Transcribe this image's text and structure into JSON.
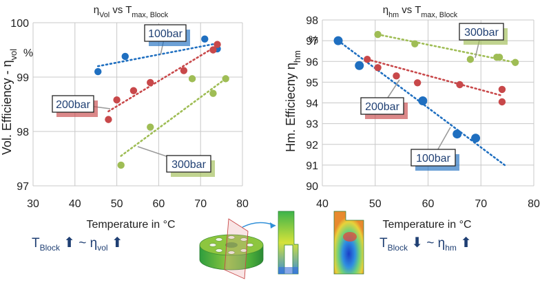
{
  "colors": {
    "blue": "#1f6fc0",
    "red": "#c8484a",
    "green": "#9fbd55",
    "grid": "#c8c8c8",
    "text": "#1e1e1e",
    "navy": "#1f3f73"
  },
  "chart_data": [
    {
      "type": "scatter",
      "title": {
        "main": "η",
        "main_sub": "Vol",
        "mid": " vs T",
        "mid_sub": "max, Block"
      },
      "ylabel": {
        "main": "Vol. Efficiency - η",
        "sub": "vol"
      },
      "y_unit": "%",
      "xlabel": "Temperature in °C",
      "xlim": [
        30,
        80
      ],
      "ylim": [
        97,
        100
      ],
      "xticks": [
        "30",
        "40",
        "50",
        "60",
        "70",
        "80"
      ],
      "yticks": [
        "97",
        "98",
        "99",
        "100"
      ],
      "grid": true,
      "series": [
        {
          "name": "100bar",
          "color": "blue",
          "points": [
            [
              45.5,
              99.1
            ],
            [
              52,
              99.38
            ],
            [
              71,
              99.7
            ],
            [
              74,
              99.52
            ]
          ],
          "trend": [
            [
              45.5,
              99.2
            ],
            [
              74,
              99.62
            ]
          ]
        },
        {
          "name": "200bar",
          "color": "red",
          "points": [
            [
              48,
              98.22
            ],
            [
              50,
              98.58
            ],
            [
              54,
              98.75
            ],
            [
              58,
              98.9
            ],
            [
              66,
              99.12
            ],
            [
              73,
              99.5
            ],
            [
              74,
              99.6
            ]
          ],
          "trend": [
            [
              48,
              98.37
            ],
            [
              74,
              99.58
            ]
          ]
        },
        {
          "name": "300bar",
          "color": "green",
          "points": [
            [
              51,
              97.38
            ],
            [
              58,
              98.08
            ],
            [
              68,
              98.97
            ],
            [
              73,
              98.7
            ],
            [
              76,
              98.97
            ]
          ],
          "trend": [
            [
              51,
              97.55
            ],
            [
              76,
              98.97
            ]
          ]
        }
      ],
      "callouts": [
        "100bar",
        "200bar",
        "300bar"
      ]
    },
    {
      "type": "scatter",
      "title": {
        "main": "η",
        "main_sub": "hm",
        "mid": " vs T",
        "mid_sub": "max, Block"
      },
      "ylabel": {
        "main": "Hm. Efficiecny η",
        "sub": "hm"
      },
      "y_unit": "%",
      "xlabel": "Temperature in °C",
      "xlim": [
        40,
        80
      ],
      "ylim": [
        90,
        98
      ],
      "xticks": [
        "40",
        "50",
        "60",
        "70",
        "80"
      ],
      "yticks": [
        "90",
        "91",
        "92",
        "93",
        "94",
        "95",
        "96",
        "97",
        "98"
      ],
      "grid": true,
      "series": [
        {
          "name": "100bar",
          "color": "blue",
          "points": [
            [
              43,
              97
            ],
            [
              47,
              95.8
            ],
            [
              59,
              94.1
            ],
            [
              65.5,
              92.5
            ],
            [
              69,
              92.3
            ]
          ],
          "trend": [
            [
              43,
              97
            ],
            [
              74.5,
              91
            ]
          ]
        },
        {
          "name": "200bar",
          "color": "red",
          "points": [
            [
              48.5,
              96.1
            ],
            [
              50.5,
              95.7
            ],
            [
              54,
              95.3
            ],
            [
              58,
              94.97
            ],
            [
              66,
              94.88
            ],
            [
              74,
              94.65
            ],
            [
              74,
              94.05
            ]
          ],
          "trend": [
            [
              48.5,
              96.1
            ],
            [
              74,
              94.35
            ]
          ]
        },
        {
          "name": "300bar",
          "color": "green",
          "points": [
            [
              50.5,
              97.3
            ],
            [
              57.5,
              96.85
            ],
            [
              68,
              96.1
            ],
            [
              73,
              96.2
            ],
            [
              73.5,
              96.2
            ],
            [
              76.5,
              95.95
            ]
          ],
          "trend": [
            [
              50.5,
              97.3
            ],
            [
              76.5,
              95.95
            ]
          ]
        }
      ],
      "callouts": [
        "300bar",
        "200bar",
        "100bar"
      ]
    }
  ],
  "relations": {
    "left": {
      "t": "T",
      "t_sub": "Block",
      "tilde": "~",
      "eta": "η",
      "eta_sub": "vol"
    },
    "right": {
      "t": "T",
      "t_sub": "Block",
      "tilde": "~",
      "eta": "η",
      "eta_sub": "hm"
    }
  }
}
